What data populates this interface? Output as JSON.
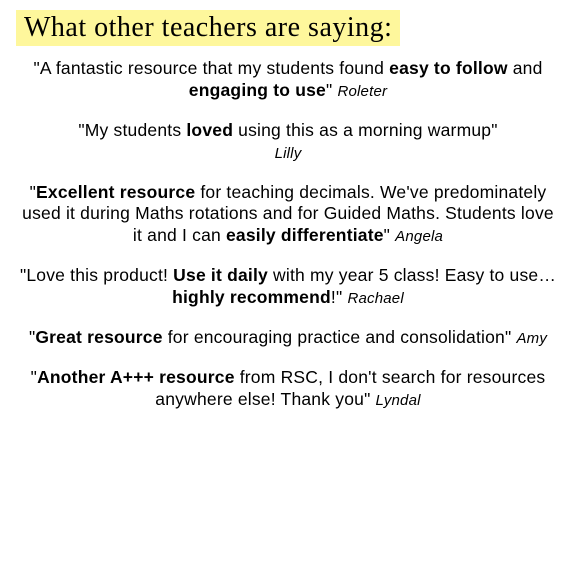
{
  "header": "What other teachers are saying:",
  "colors": {
    "highlight": "#fef79c",
    "text": "#000000",
    "background": "#ffffff"
  },
  "typography": {
    "header_fontsize": 28,
    "body_fontsize": 17.5,
    "attrib_fontsize": 15,
    "font_family": "Comic Sans / handwritten cursive"
  },
  "quotes": [
    {
      "parts": [
        {
          "t": "\"A fantastic resource that my students found ",
          "b": false
        },
        {
          "t": "easy to follow",
          "b": true
        },
        {
          "t": " and ",
          "b": false
        },
        {
          "t": "engaging to use",
          "b": true
        },
        {
          "t": "\"",
          "b": false
        }
      ],
      "attrib": "Roleter"
    },
    {
      "parts": [
        {
          "t": "\"My students ",
          "b": false
        },
        {
          "t": "loved",
          "b": true
        },
        {
          "t": " using this as a morning warmup\"",
          "b": false
        }
      ],
      "attrib": "Lilly",
      "attrib_newline": true
    },
    {
      "parts": [
        {
          "t": "\"",
          "b": false
        },
        {
          "t": "Excellent resource",
          "b": true
        },
        {
          "t": " for teaching decimals. We've predominately used it during Maths rotations and for Guided Maths. Students love it and I can ",
          "b": false
        },
        {
          "t": "easily differentiate",
          "b": true
        },
        {
          "t": "\"",
          "b": false
        }
      ],
      "attrib": "Angela"
    },
    {
      "parts": [
        {
          "t": "\"Love this product! ",
          "b": false
        },
        {
          "t": "Use it daily",
          "b": true
        },
        {
          "t": " with my year 5 class! Easy to use… ",
          "b": false
        },
        {
          "t": "highly recommend",
          "b": true
        },
        {
          "t": "!\"",
          "b": false
        }
      ],
      "attrib": "Rachael"
    },
    {
      "parts": [
        {
          "t": "\"",
          "b": false
        },
        {
          "t": "Great resource",
          "b": true
        },
        {
          "t": " for encouraging practice and consolidation\"",
          "b": false
        }
      ],
      "attrib": "Amy"
    },
    {
      "parts": [
        {
          "t": "\"",
          "b": false
        },
        {
          "t": "Another A+++ resource",
          "b": true
        },
        {
          "t": " from RSC, I don't search for resources anywhere else! Thank you\"",
          "b": false
        }
      ],
      "attrib": "Lyndal"
    }
  ]
}
